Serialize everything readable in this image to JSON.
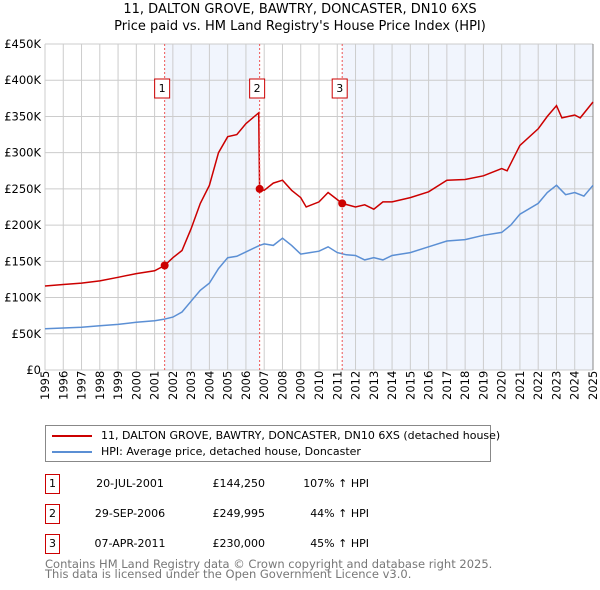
{
  "chart_data": {
    "type": "line",
    "title": "11, DALTON GROVE, BAWTRY, DONCASTER, DN10 6XS",
    "subtitle": "Price paid vs. HM Land Registry's House Price Index (HPI)",
    "xlim": [
      1995,
      2025
    ],
    "ylim": [
      0,
      450000
    ],
    "grid": true,
    "x_ticks": [
      "1995",
      "1996",
      "1997",
      "1998",
      "1999",
      "2000",
      "2001",
      "2002",
      "2003",
      "2004",
      "2005",
      "2006",
      "2007",
      "2008",
      "2009",
      "2010",
      "2011",
      "2012",
      "2013",
      "2014",
      "2015",
      "2016",
      "2017",
      "2018",
      "2019",
      "2020",
      "2021",
      "2022",
      "2023",
      "2024",
      "2025"
    ],
    "y_ticks": [
      {
        "v": 0,
        "label": "£0"
      },
      {
        "v": 50000,
        "label": "£50K"
      },
      {
        "v": 100000,
        "label": "£100K"
      },
      {
        "v": 150000,
        "label": "£150K"
      },
      {
        "v": 200000,
        "label": "£200K"
      },
      {
        "v": 250000,
        "label": "£250K"
      },
      {
        "v": 300000,
        "label": "£300K"
      },
      {
        "v": 350000,
        "label": "£350K"
      },
      {
        "v": 400000,
        "label": "£400K"
      },
      {
        "v": 450000,
        "label": "£450K"
      }
    ],
    "series": [
      {
        "name": "11, DALTON GROVE, BAWTRY, DONCASTER, DN10 6XS (detached house)",
        "color": "#cc0000",
        "x": [
          1995,
          1996,
          1997,
          1998,
          1999,
          2000,
          2001,
          2001.55,
          2002,
          2002.5,
          2003,
          2003.5,
          2004,
          2004.5,
          2005,
          2005.5,
          2006,
          2006.7,
          2006.75,
          2007,
          2007.5,
          2008,
          2008.5,
          2009,
          2009.3,
          2010,
          2010.5,
          2011.27,
          2012,
          2012.5,
          2013,
          2013.5,
          2014,
          2015,
          2016,
          2017,
          2018,
          2019,
          2020,
          2020.3,
          2021,
          2022,
          2022.5,
          2023,
          2023.3,
          2024,
          2024.3,
          2025
        ],
        "y": [
          116000,
          118000,
          120000,
          123000,
          128000,
          133000,
          137000,
          144250,
          155000,
          165000,
          195000,
          230000,
          255000,
          300000,
          322000,
          325000,
          340000,
          355000,
          249995,
          248000,
          258000,
          262000,
          248000,
          238000,
          225000,
          232000,
          245000,
          230000,
          225000,
          228000,
          222000,
          232000,
          232000,
          238000,
          246000,
          262000,
          263000,
          268000,
          278000,
          275000,
          310000,
          333000,
          350000,
          365000,
          348000,
          352000,
          348000,
          370000
        ]
      },
      {
        "name": "HPI: Average price, detached house, Doncaster",
        "color": "#5b8fd4",
        "x": [
          1995,
          1996,
          1997,
          1998,
          1999,
          2000,
          2001,
          2001.5,
          2002,
          2002.5,
          2003,
          2003.5,
          2004,
          2004.5,
          2005,
          2005.5,
          2006,
          2006.75,
          2007,
          2007.5,
          2008,
          2008.5,
          2009,
          2009.5,
          2010,
          2010.5,
          2011,
          2011.5,
          2012,
          2012.5,
          2013,
          2013.5,
          2014,
          2015,
          2016,
          2017,
          2018,
          2019,
          2020,
          2020.5,
          2021,
          2022,
          2022.5,
          2023,
          2023.5,
          2024,
          2024.5,
          2025
        ],
        "y": [
          57000,
          58000,
          59000,
          61000,
          63000,
          66000,
          68000,
          70000,
          73000,
          80000,
          95000,
          110000,
          120000,
          140000,
          155000,
          157000,
          163000,
          172000,
          174000,
          172000,
          182000,
          172000,
          160000,
          162000,
          164000,
          170000,
          162000,
          159000,
          158000,
          152000,
          155000,
          152000,
          158000,
          162000,
          170000,
          178000,
          180000,
          186000,
          190000,
          200000,
          215000,
          230000,
          245000,
          255000,
          242000,
          245000,
          240000,
          255000
        ]
      }
    ],
    "sales": [
      {
        "id": "1",
        "x": 2001.55,
        "y": 144250,
        "date": "20-JUL-2001",
        "price": "£144,250",
        "hpi": "107% ↑ HPI"
      },
      {
        "id": "2",
        "x": 2006.75,
        "y": 249995,
        "date": "29-SEP-2006",
        "price": "£249,995",
        "hpi": "44% ↑ HPI"
      },
      {
        "id": "3",
        "x": 2011.27,
        "y": 230000,
        "date": "07-APR-2011",
        "price": "£230,000",
        "hpi": "45% ↑ HPI"
      }
    ],
    "legend": "below"
  },
  "footer": {
    "line1": "Contains HM Land Registry data © Crown copyright and database right 2025.",
    "line2": "This data is licensed under the Open Government Licence v3.0."
  }
}
